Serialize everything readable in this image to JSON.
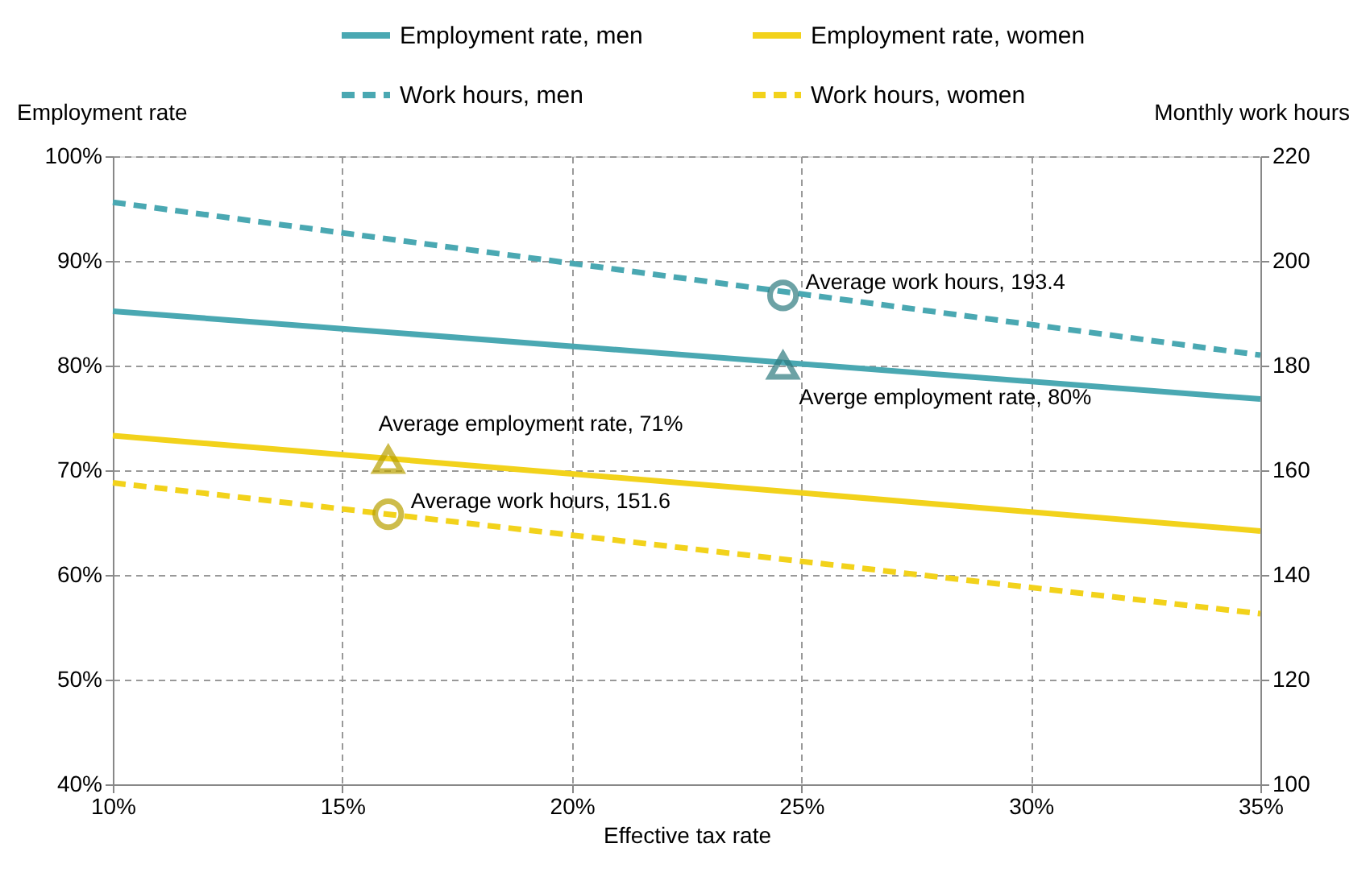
{
  "chart_data": {
    "type": "line",
    "xlabel": "Effective tax rate",
    "ylabel": "Employment rate",
    "y2label": "Monthly work hours",
    "xlim": [
      10,
      35
    ],
    "xticks": [
      {
        "value": 10,
        "label": "10%"
      },
      {
        "value": 15,
        "label": "15%"
      },
      {
        "value": 20,
        "label": "20%"
      },
      {
        "value": 25,
        "label": "25%"
      },
      {
        "value": 30,
        "label": "30%"
      },
      {
        "value": 35,
        "label": "35%"
      }
    ],
    "ylim": [
      40,
      100
    ],
    "yticks": [
      {
        "value": 40,
        "label": "40%"
      },
      {
        "value": 50,
        "label": "50%"
      },
      {
        "value": 60,
        "label": "60%"
      },
      {
        "value": 70,
        "label": "70%"
      },
      {
        "value": 80,
        "label": "80%"
      },
      {
        "value": 90,
        "label": "90%"
      },
      {
        "value": 100,
        "label": "100%"
      }
    ],
    "y2lim": [
      100,
      220
    ],
    "y2ticks": [
      100,
      120,
      140,
      160,
      180,
      200,
      220
    ],
    "grid": true,
    "legend": "top",
    "series": [
      {
        "name": "Employment rate, men",
        "color": "#4aa8b2",
        "x": [
          10,
          35
        ],
        "values": [
          85.2,
          76.8
        ],
        "line_style": "solid",
        "marker": "none"
      },
      {
        "name": "Employment rate, women",
        "color": "#f2d21b",
        "x": [
          10,
          35
        ],
        "values": [
          73.3,
          64.2
        ],
        "line_style": "solid",
        "marker": "none"
      },
      {
        "name": "Work hours, men",
        "color": "#4aa8b2",
        "x": [
          10,
          35
        ],
        "values": [
          211.2,
          182.0
        ],
        "line_style": "dashed",
        "marker": "none",
        "axis": "y2"
      },
      {
        "name": "Work hours, women",
        "color": "#f2d21b",
        "x": [
          10,
          35
        ],
        "values": [
          157.6,
          132.6
        ],
        "line_style": "dashed",
        "marker": "none",
        "axis": "y2"
      },
      {
        "type": "scatter",
        "color": "#2e7b80",
        "x": [
          24.6
        ],
        "values": [
          193.4
        ],
        "value_labels": [
          "Average work hours, 193.4"
        ],
        "marker": "circle",
        "axis": "y2"
      },
      {
        "type": "scatter",
        "color": "#2e7b80",
        "x": [
          24.6
        ],
        "values": [
          80
        ],
        "value_labels": [
          "Averge employment rate, 80%"
        ],
        "marker": "triangle"
      },
      {
        "type": "scatter",
        "color": "#b8a000",
        "x": [
          16
        ],
        "values": [
          71
        ],
        "value_labels": [
          "Average employment rate, 71%"
        ],
        "marker": "triangle"
      },
      {
        "type": "scatter",
        "color": "#b8a000",
        "x": [
          16
        ],
        "values": [
          151.6
        ],
        "value_labels": [
          "Average work hours, 151.6"
        ],
        "marker": "circle",
        "axis": "y2"
      }
    ]
  }
}
